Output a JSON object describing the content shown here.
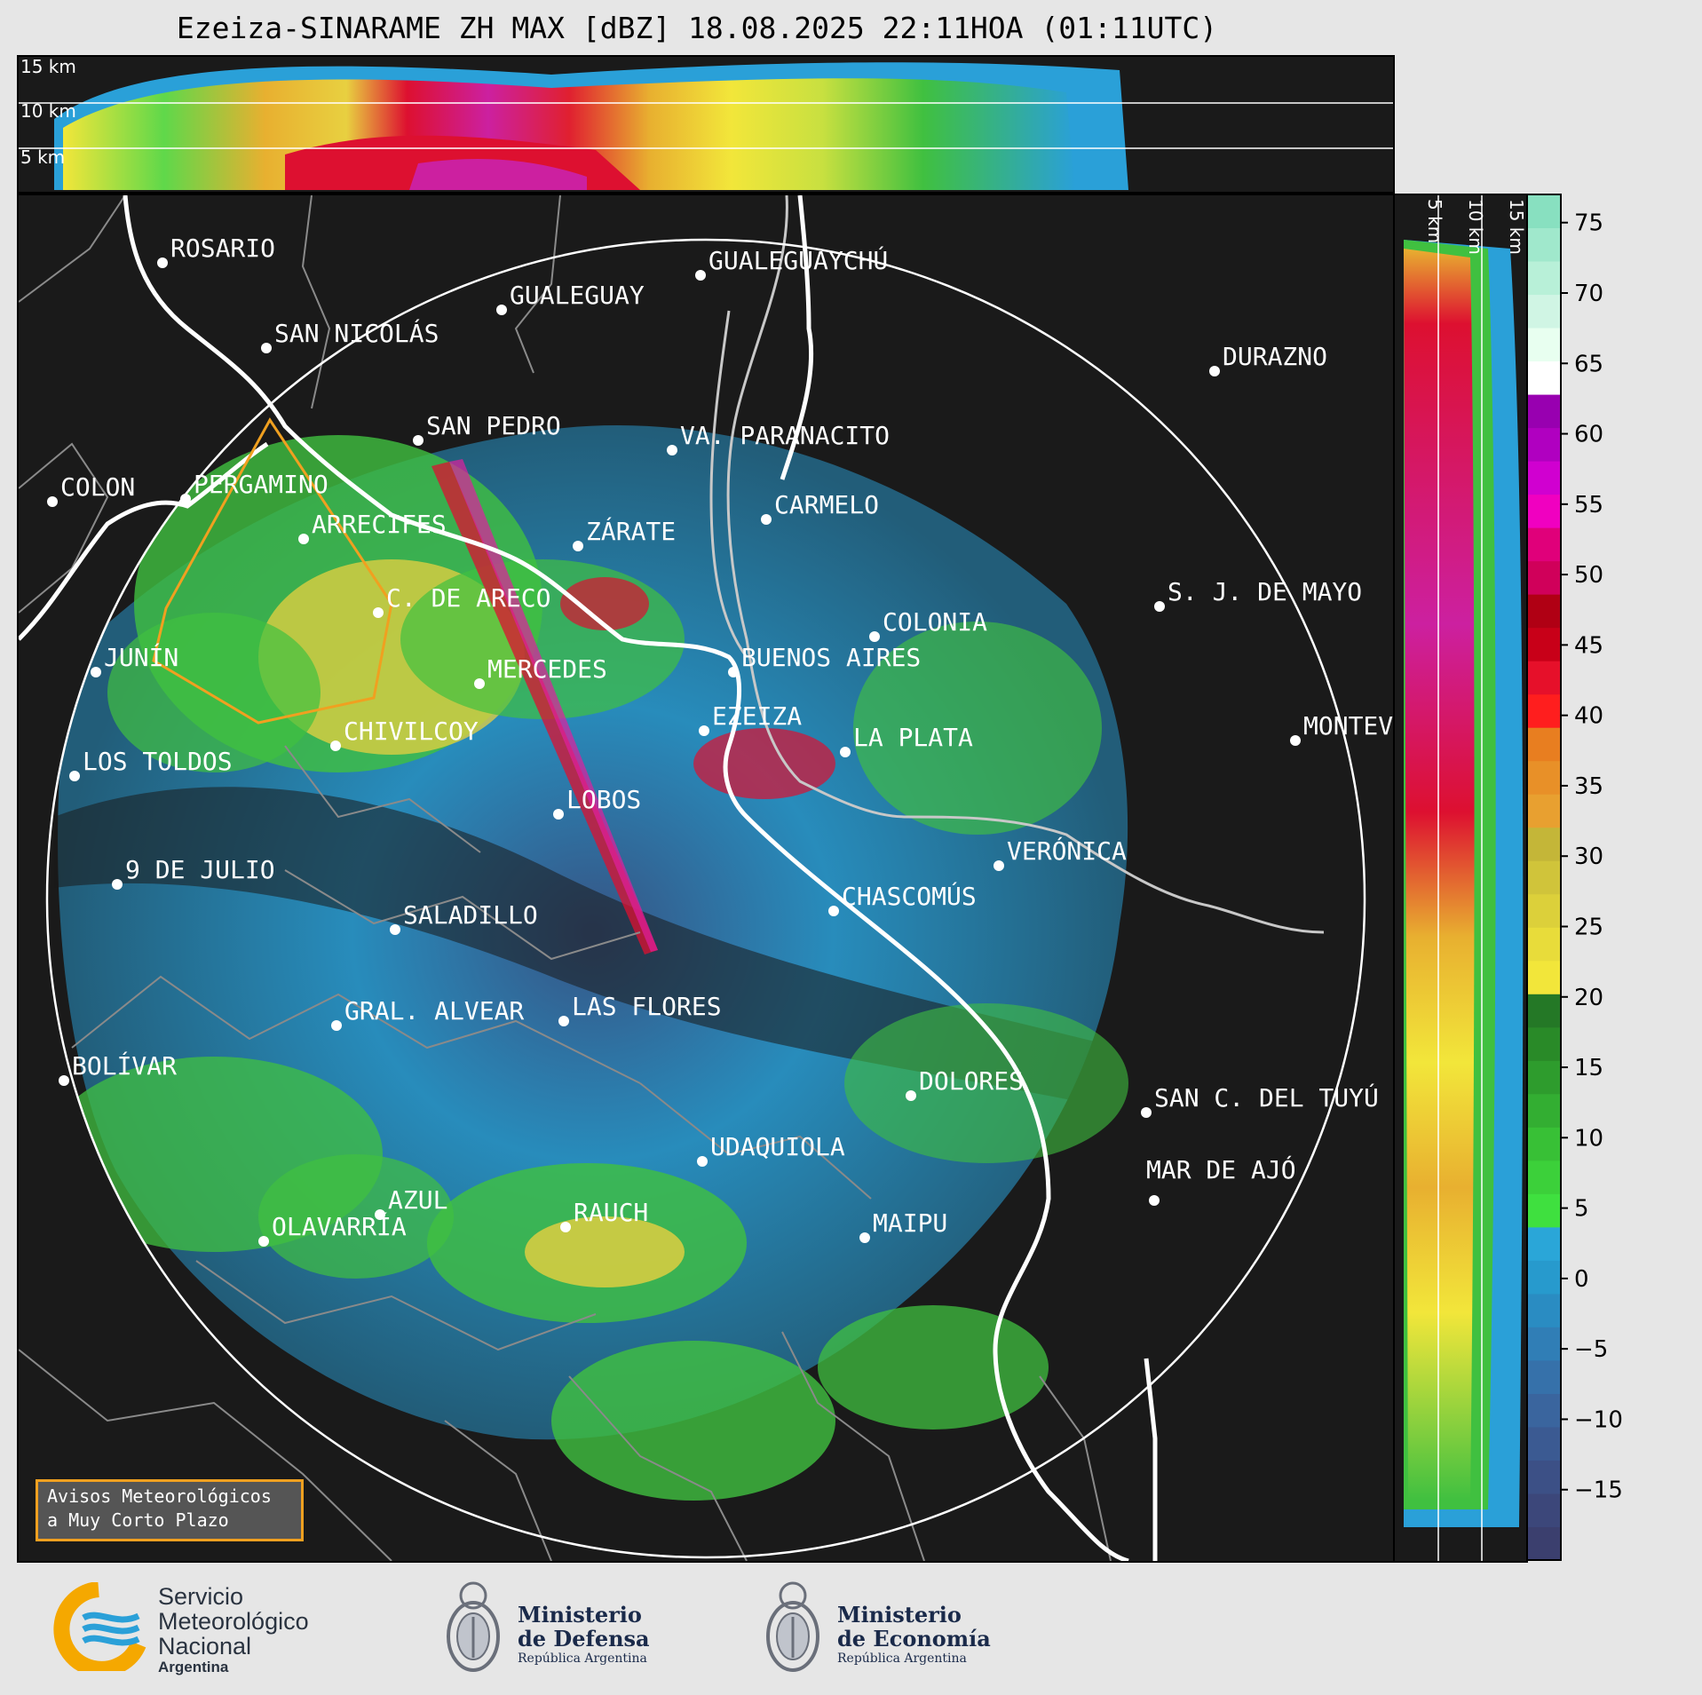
{
  "title": "Ezeiza-SINARAME ZH MAX [dBZ] 18.08.2025 22:11HOA (01:11UTC)",
  "top_panel": {
    "height_labels": [
      "15 km",
      "10 km",
      "5 km"
    ]
  },
  "side_panel": {
    "height_labels": [
      "5 km",
      "10 km",
      "15 km"
    ]
  },
  "colorbar": {
    "ticks": [
      "75",
      "70",
      "65",
      "60",
      "55",
      "50",
      "45",
      "40",
      "35",
      "30",
      "25",
      "20",
      "15",
      "10",
      "5",
      "0",
      "−5",
      "−10",
      "−15"
    ],
    "tick_values": [
      75,
      70,
      65,
      60,
      55,
      50,
      45,
      40,
      35,
      30,
      25,
      20,
      15,
      10,
      5,
      0,
      -5,
      -10,
      -15
    ],
    "range": [
      -20,
      77
    ]
  },
  "cities": [
    {
      "name": "ROSARIO"
    },
    {
      "name": "GUALEGUAYCHÚ"
    },
    {
      "name": "GUALEGUAY"
    },
    {
      "name": "SAN NICOLÁS"
    },
    {
      "name": "DURAZNO"
    },
    {
      "name": "SAN PEDRO"
    },
    {
      "name": "VA. PARANACITO"
    },
    {
      "name": "COLON"
    },
    {
      "name": "PERGAMINO"
    },
    {
      "name": "CARMELO"
    },
    {
      "name": "ARRECIFES"
    },
    {
      "name": "ZÁRATE"
    },
    {
      "name": "C. DE ARECO"
    },
    {
      "name": "S. J. DE MAYO"
    },
    {
      "name": "COLONIA"
    },
    {
      "name": "JUNÍN"
    },
    {
      "name": "BUENOS AIRES"
    },
    {
      "name": "MERCEDES"
    },
    {
      "name": "EZEIZA"
    },
    {
      "name": "MONTEVIDEO"
    },
    {
      "name": "CHIVILCOY"
    },
    {
      "name": "LA PLATA"
    },
    {
      "name": "LOS TOLDOS"
    },
    {
      "name": "LOBOS"
    },
    {
      "name": "VERÓNICA"
    },
    {
      "name": "9 DE JULIO"
    },
    {
      "name": "CHASCOMÚS"
    },
    {
      "name": "SALADILLO"
    },
    {
      "name": "GRAL. ALVEAR"
    },
    {
      "name": "LAS FLORES"
    },
    {
      "name": "BOLÍVAR"
    },
    {
      "name": "DOLORES"
    },
    {
      "name": "SAN C. DEL TUYÚ"
    },
    {
      "name": "UDAQUIOLA"
    },
    {
      "name": "AZUL"
    },
    {
      "name": "RAUCH"
    },
    {
      "name": "MAR DE AJÓ"
    },
    {
      "name": "OLAVARRÍA"
    },
    {
      "name": "MAIPU"
    }
  ],
  "avisos": {
    "line1": "Avisos Meteorológicos",
    "line2": "a Muy Corto Plazo"
  },
  "footer": {
    "smn": {
      "line1": "Servicio",
      "line2": "Meteorológico",
      "line3": "Nacional",
      "line4": "Argentina"
    },
    "defensa": {
      "line1": "Ministerio",
      "line2": "de Defensa",
      "line3": "República Argentina"
    },
    "economia": {
      "line1": "Ministerio",
      "line2": "de Economía",
      "line3": "República Argentina"
    }
  },
  "colors": {
    "background": "#1a1a1a",
    "range_ring": "#ffffff",
    "coastline": "#ffffff",
    "alert_polygon": "#f0a020"
  }
}
